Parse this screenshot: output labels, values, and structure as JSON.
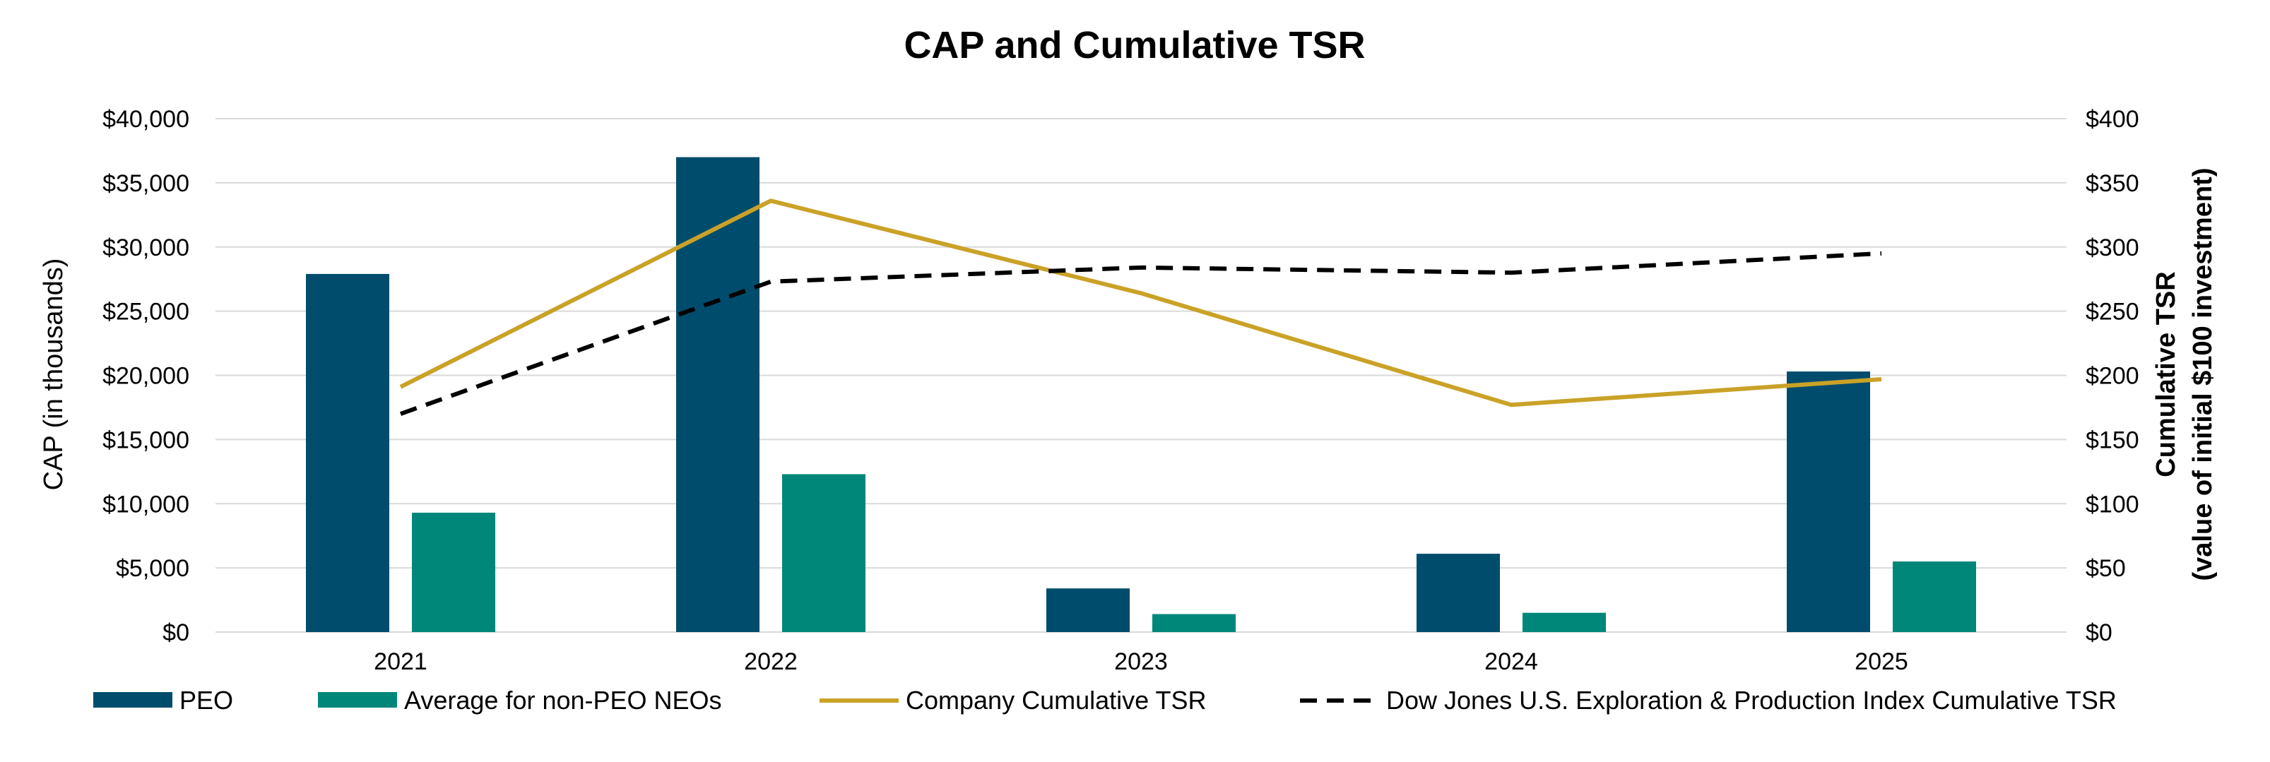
{
  "chart_data": {
    "type": "bar",
    "title": "CAP and Cumulative TSR",
    "categories": [
      "2021",
      "2022",
      "2023",
      "2024",
      "2025"
    ],
    "ylabel": "CAP (in thousands)",
    "y2label_line1": "Cumulative TSR",
    "y2label_line2": "(value of initial $100 investment)",
    "ylim": [
      0,
      40000
    ],
    "y2lim": [
      0,
      400
    ],
    "yticks": [
      "$0",
      "$5,000",
      "$10,000",
      "$15,000",
      "$20,000",
      "$25,000",
      "$30,000",
      "$35,000",
      "$40,000"
    ],
    "y2ticks": [
      "$0",
      "$50",
      "$100",
      "$150",
      "$200",
      "$250",
      "$300",
      "$350",
      "$400"
    ],
    "grid": true,
    "legend_position": "bottom",
    "series": [
      {
        "name": "PEO",
        "type": "bar",
        "axis": "left",
        "color": "#004c6d",
        "values": [
          27900,
          37000,
          3400,
          6100,
          20300
        ]
      },
      {
        "name": "Average for non-PEO NEOs",
        "type": "bar",
        "axis": "left",
        "color": "#00877a",
        "values": [
          9300,
          12300,
          1400,
          1500,
          5500
        ]
      },
      {
        "name": "Company Cumulative TSR",
        "type": "line",
        "axis": "right",
        "color": "#c9a227",
        "dashed": false,
        "values": [
          191,
          336,
          264,
          177,
          197
        ]
      },
      {
        "name": "Dow Jones U.S. Exploration & Production Index Cumulative TSR",
        "type": "line",
        "axis": "right",
        "color": "#000000",
        "dashed": true,
        "values": [
          170,
          273,
          284,
          280,
          295
        ]
      }
    ]
  }
}
